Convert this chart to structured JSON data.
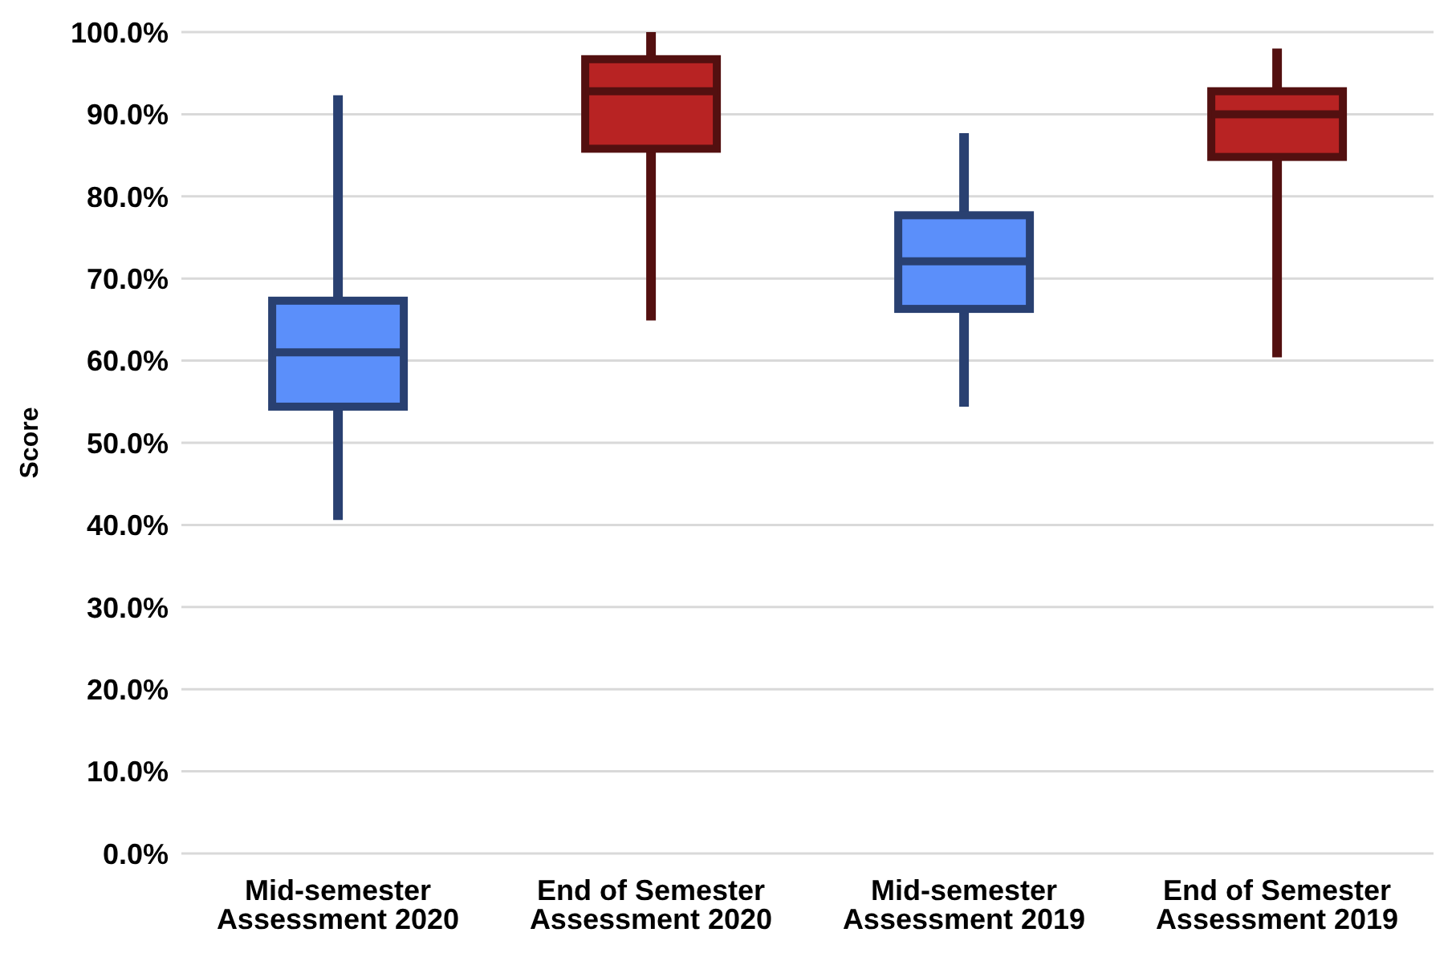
{
  "chart_data": {
    "type": "box",
    "ylabel": "Score",
    "categories": [
      "Mid-semester Assessment 2020",
      "End of Semester Assessment 2020",
      "Mid-semester Assessment 2019",
      "End of Semester Assessment 2019"
    ],
    "boxes": [
      {
        "low": 40.6,
        "q1": 54.4,
        "median": 61.0,
        "q3": 67.3,
        "high": 92.3
      },
      {
        "low": 64.9,
        "q1": 85.8,
        "median": 92.8,
        "q3": 96.7,
        "high": 100
      },
      {
        "low": 54.4,
        "q1": 66.3,
        "median": 72.1,
        "q3": 77.7,
        "high": 87.7
      },
      {
        "low": 60.4,
        "q1": 84.8,
        "median": 90.0,
        "q3": 92.8,
        "high": 98.0
      }
    ],
    "colors": [
      "#5b8ffa",
      "#b82323",
      "#5b8ffa",
      "#b82323"
    ],
    "ylim": [
      0,
      100
    ],
    "yticks": [
      {
        "value": 0,
        "label": "0.0%"
      },
      {
        "value": 10,
        "label": "10.0%"
      },
      {
        "value": 20,
        "label": "20.0%"
      },
      {
        "value": 30,
        "label": "30.0%"
      },
      {
        "value": 40,
        "label": "40.0%"
      },
      {
        "value": 50,
        "label": "50.0%"
      },
      {
        "value": 60,
        "label": "60.0%"
      },
      {
        "value": 70,
        "label": "70.0%"
      },
      {
        "value": 80,
        "label": "80.0%"
      },
      {
        "value": 90,
        "label": "90.0%"
      },
      {
        "value": 100,
        "label": "100.0%"
      }
    ],
    "grid": "y",
    "legend": false
  }
}
